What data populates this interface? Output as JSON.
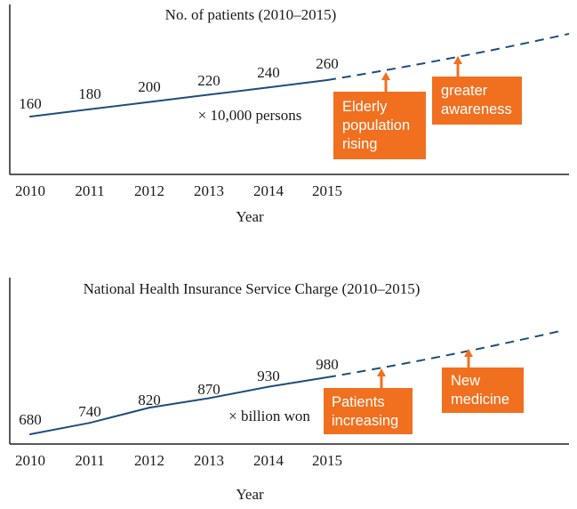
{
  "colors": {
    "line": "#1f4e79",
    "accent": "#f07020",
    "axis": "#222222",
    "text": "#1a1a1a"
  },
  "chart_data": [
    {
      "type": "line",
      "title": "No. of patients (2010–2015)",
      "xlabel": "Year",
      "ylabel": "",
      "unit_note": "× 10,000 persons",
      "x": [
        "2010",
        "2011",
        "2012",
        "2013",
        "2014",
        "2015"
      ],
      "values": [
        160,
        180,
        200,
        220,
        240,
        260
      ],
      "value_labels": [
        "160",
        "180",
        "200",
        "220",
        "240",
        "260"
      ],
      "projection": "dashed trend beyond 2015",
      "annotations": [
        {
          "lines": [
            "Elderly",
            "population",
            "rising"
          ]
        },
        {
          "lines": [
            "greater",
            "awareness"
          ]
        }
      ]
    },
    {
      "type": "line",
      "title": "National Health Insurance Service Charge (2010–2015)",
      "xlabel": "Year",
      "ylabel": "",
      "unit_note": "× billion won",
      "x": [
        "2010",
        "2011",
        "2012",
        "2013",
        "2014",
        "2015"
      ],
      "values": [
        680,
        740,
        820,
        870,
        930,
        980
      ],
      "value_labels": [
        "680",
        "740",
        "820",
        "870",
        "930",
        "980"
      ],
      "projection": "dashed trend beyond 2015",
      "annotations": [
        {
          "lines": [
            "Patients",
            "increasing"
          ]
        },
        {
          "lines": [
            "New",
            "medicine"
          ]
        }
      ]
    }
  ]
}
